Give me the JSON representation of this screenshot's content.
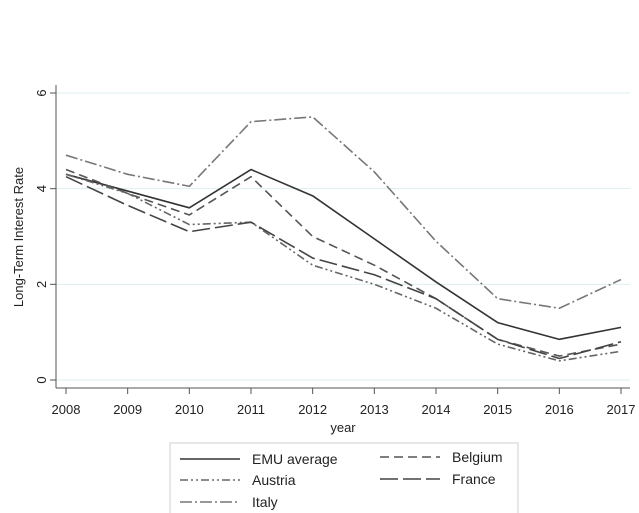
{
  "chart_data": {
    "type": "line",
    "title": "",
    "xlabel": "year",
    "ylabel": "Long-Term Interest Rate",
    "x": [
      2008,
      2009,
      2010,
      2011,
      2012,
      2013,
      2014,
      2015,
      2016,
      2017
    ],
    "xlim": [
      2008,
      2017
    ],
    "ylim": [
      0,
      6
    ],
    "yticks": [
      0,
      2,
      4,
      6
    ],
    "grid": true,
    "legend_position": "bottom",
    "series": [
      {
        "name": "EMU average",
        "color": "#333333",
        "dash": "solid",
        "values": [
          4.3,
          3.95,
          3.6,
          4.4,
          3.85,
          2.95,
          2.05,
          1.2,
          0.85,
          1.1
        ]
      },
      {
        "name": "Belgium",
        "color": "#555555",
        "dash": "dashed",
        "values": [
          4.4,
          3.9,
          3.45,
          4.25,
          3.0,
          2.4,
          1.7,
          0.85,
          0.5,
          0.75
        ]
      },
      {
        "name": "Austria",
        "color": "#666666",
        "dash": "dash-dot-dot",
        "values": [
          4.3,
          3.9,
          3.25,
          3.3,
          2.4,
          2.0,
          1.5,
          0.75,
          0.4,
          0.6
        ]
      },
      {
        "name": "France",
        "color": "#444444",
        "dash": "longdash",
        "values": [
          4.25,
          3.65,
          3.1,
          3.3,
          2.55,
          2.2,
          1.7,
          0.85,
          0.45,
          0.8
        ]
      },
      {
        "name": "Italy",
        "color": "#777777",
        "dash": "dash-dot",
        "values": [
          4.7,
          4.3,
          4.05,
          5.4,
          5.5,
          4.35,
          2.9,
          1.7,
          1.5,
          2.1
        ]
      }
    ]
  }
}
